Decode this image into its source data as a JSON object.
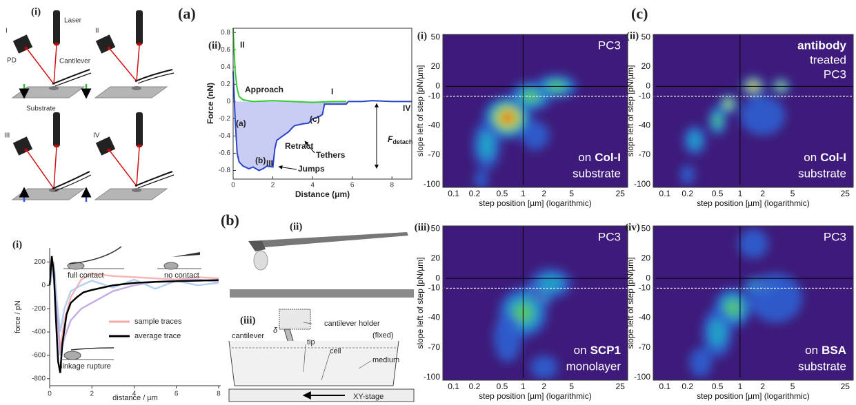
{
  "panel_a": {
    "label": "(a)",
    "schematic": {
      "label": "(i)",
      "steps": [
        "I",
        "II",
        "III",
        "IV"
      ],
      "laser": "Laser",
      "detector": "PD",
      "cantilever": "Cantilever",
      "substrate": "Substrate"
    },
    "force_curve": {
      "type": "line",
      "label": "(ii)",
      "xlabel": "Distance (μm)",
      "ylabel": "Force (nN)",
      "xlim": [
        0,
        9
      ],
      "xticks": [
        0,
        2,
        4,
        6,
        8
      ],
      "ylim": [
        -0.9,
        0.85
      ],
      "yticks": [
        0.8,
        0.6,
        0.4,
        0.2,
        0,
        -0.2,
        -0.4,
        -0.6,
        -0.8
      ],
      "series": [
        {
          "name": "Approach",
          "color": "#33cc33",
          "x": [
            0,
            0.05,
            0.1,
            0.2,
            0.3,
            0.5,
            1,
            2,
            3,
            4,
            5,
            5.7
          ],
          "values": [
            0.85,
            0.6,
            0.35,
            0.15,
            0.06,
            0.02,
            0,
            0.01,
            0,
            -0.01,
            0,
            0
          ]
        },
        {
          "name": "Retract",
          "color": "#2a44c8",
          "fill": "#c9cdf4",
          "x": [
            0,
            0.1,
            0.2,
            0.3,
            0.5,
            0.8,
            1.0,
            1.3,
            1.5,
            1.7,
            2.0,
            2.1,
            2.2,
            2.5,
            2.8,
            3.0,
            3.1,
            3.5,
            3.8,
            4.0,
            4.3,
            4.5,
            4.6,
            5.0,
            5.5,
            5.7,
            5.8,
            6.5,
            7,
            8,
            9
          ],
          "values": [
            0.35,
            -0.2,
            -0.6,
            -0.7,
            -0.75,
            -0.78,
            -0.76,
            -0.8,
            -0.78,
            -0.75,
            -0.76,
            -0.55,
            -0.45,
            -0.4,
            -0.35,
            -0.3,
            -0.28,
            -0.26,
            -0.25,
            -0.2,
            -0.18,
            -0.15,
            -0.03,
            -0.03,
            -0.03,
            -0.03,
            0,
            0,
            0.01,
            0,
            0
          ]
        }
      ],
      "stage_labels": [
        "I",
        "II",
        "III",
        "IV"
      ],
      "event_labels": [
        "(a)",
        "(b)",
        "(c)"
      ],
      "tethers": "Tethers",
      "jumps": "Jumps",
      "detach": {
        "symbol": "F",
        "subscript": "detach"
      }
    }
  },
  "panel_b": {
    "label": "(b)",
    "trace_plot": {
      "type": "line",
      "label": "(i)",
      "xlabel": "distance / µm",
      "ylabel": "force / pN",
      "xlim": [
        0,
        8.1
      ],
      "xticks": [
        0,
        2,
        4,
        6,
        8
      ],
      "ylim": [
        -860,
        320
      ],
      "yticks": [
        200,
        0,
        -200,
        -400,
        -600,
        -800
      ],
      "series": [
        {
          "name": "sample traces",
          "traces": [
            {
              "color": "#f4a9a9",
              "x": [
                0,
                0.2,
                0.35,
                0.5,
                0.7,
                1,
                1.5,
                2,
                3,
                4,
                5,
                6,
                7,
                8
              ],
              "values": [
                0,
                200,
                -200,
                -550,
                -300,
                -100,
                50,
                100,
                80,
                70,
                60,
                50,
                70,
                60
              ]
            },
            {
              "color": "#b8a0dc",
              "x": [
                0,
                0.2,
                0.35,
                0.5,
                0.7,
                1,
                1.5,
                2,
                3,
                4,
                5,
                6,
                7,
                8
              ],
              "values": [
                0,
                150,
                -250,
                -600,
                -450,
                -300,
                -200,
                -150,
                -50,
                0,
                30,
                40,
                50,
                30
              ]
            },
            {
              "color": "#a9c8ee",
              "x": [
                0,
                0.2,
                0.35,
                0.5,
                0.7,
                1,
                1.5,
                2,
                3,
                4,
                5,
                6,
                7,
                8
              ],
              "values": [
                0,
                180,
                -150,
                -400,
                -200,
                -50,
                0,
                40,
                -20,
                50,
                -30,
                40,
                0,
                20
              ]
            }
          ]
        },
        {
          "name": "average trace",
          "color": "#000000",
          "x": [
            0,
            0.1,
            0.2,
            0.3,
            0.4,
            0.5,
            0.6,
            0.8,
            1,
            1.3,
            1.6,
            2,
            2.5,
            3,
            3.5,
            4,
            5,
            6,
            7,
            8
          ],
          "values": [
            0,
            250,
            100,
            -300,
            -650,
            -750,
            -500,
            -250,
            -150,
            -100,
            -60,
            -40,
            -20,
            0,
            10,
            20,
            30,
            35,
            40,
            45
          ]
        }
      ],
      "insets": [
        "full contact",
        "no contact",
        "linkage rupture"
      ]
    },
    "photo": {
      "label": "(ii)"
    },
    "setup": {
      "label": "(iii)",
      "holder": "cantilever holder",
      "holder_note": "(fixed)",
      "cantilever": "cantilever",
      "deflection": "δ",
      "tip": "tip",
      "cell": "cell",
      "medium": "medium",
      "stage": "XY-stage"
    }
  },
  "panel_c": {
    "label": "(c)",
    "axes": {
      "xlabel": "step position [µm] (logarithmic)",
      "ylabel": "slope left of step [pN/µm]",
      "xscale": "log",
      "xlim": [
        0.07,
        32
      ],
      "xticks": [
        0.1,
        0.2,
        0.5,
        1,
        2,
        5,
        25
      ],
      "ylim": [
        -103,
        53
      ],
      "yticks": [
        50,
        20,
        0,
        -10,
        -40,
        -70,
        -100
      ],
      "hline": 0,
      "dashed_hline": -10,
      "vline": 1,
      "background": "#3e1b7a",
      "level_colors": [
        "#2f5fd0",
        "#1fa8c8",
        "#5cc85a",
        "#e8e030",
        "#e02020"
      ]
    },
    "maps": [
      {
        "label": "(i)",
        "top": [
          {
            "text": "PC3"
          }
        ],
        "condition": {
          "prefix": "on",
          "name": "Col-I",
          "suffix": "substrate"
        },
        "hotspots": [
          {
            "x": 0.6,
            "y": -32,
            "sx": 0.35,
            "sy": 22,
            "level": 5
          },
          {
            "x": 1.3,
            "y": -10,
            "sx": 0.3,
            "sy": 15,
            "level": 3
          },
          {
            "x": 3,
            "y": 0,
            "sx": 0.3,
            "sy": 12,
            "level": 3
          },
          {
            "x": 0.3,
            "y": -60,
            "sx": 0.2,
            "sy": 25,
            "level": 2
          },
          {
            "x": 0.25,
            "y": -95,
            "sx": 0.1,
            "sy": 10,
            "level": 1
          },
          {
            "x": 1.5,
            "y": -50,
            "sx": 0.2,
            "sy": 15,
            "level": 1
          }
        ]
      },
      {
        "label": "(ii)",
        "top": [
          {
            "text": "antibody",
            "bold": true
          },
          {
            "text": "treated"
          },
          {
            "text": "PC3"
          }
        ],
        "condition": {
          "prefix": "on",
          "name": "Col-I",
          "suffix": "substrate"
        },
        "hotspots": [
          {
            "x": 1.5,
            "y": 0,
            "sx": 0.15,
            "sy": 10,
            "level": 5
          },
          {
            "x": 3.5,
            "y": 0,
            "sx": 0.12,
            "sy": 8,
            "level": 4
          },
          {
            "x": 0.7,
            "y": -18,
            "sx": 0.12,
            "sy": 10,
            "level": 4
          },
          {
            "x": 0.5,
            "y": -35,
            "sx": 0.12,
            "sy": 15,
            "level": 3
          },
          {
            "x": 0.25,
            "y": -55,
            "sx": 0.15,
            "sy": 15,
            "level": 2
          },
          {
            "x": 2,
            "y": -30,
            "sx": 0.3,
            "sy": 20,
            "level": 1
          },
          {
            "x": 0.2,
            "y": -90,
            "sx": 0.1,
            "sy": 10,
            "level": 1
          }
        ]
      },
      {
        "label": "(iii)",
        "top": [
          {
            "text": "PC3"
          }
        ],
        "condition": {
          "prefix": "on",
          "name": "SCP1",
          "suffix": "monolayer"
        },
        "hotspots": [
          {
            "x": 1.5,
            "y": -18,
            "sx": 0.25,
            "sy": 13,
            "level": 5
          },
          {
            "x": 1,
            "y": -35,
            "sx": 0.35,
            "sy": 25,
            "level": 3
          },
          {
            "x": 2.5,
            "y": -5,
            "sx": 0.3,
            "sy": 15,
            "level": 2
          },
          {
            "x": 0.6,
            "y": -60,
            "sx": 0.2,
            "sy": 25,
            "level": 1
          },
          {
            "x": 2,
            "y": -90,
            "sx": 0.2,
            "sy": 12,
            "level": 1
          }
        ]
      },
      {
        "label": "(iv)",
        "top": [
          {
            "text": "PC3"
          }
        ],
        "condition": {
          "prefix": "on",
          "name": "BSA",
          "suffix": "substrate"
        },
        "hotspots": [
          {
            "x": 2,
            "y": -8,
            "sx": 0.25,
            "sy": 10,
            "level": 4
          },
          {
            "x": 0.8,
            "y": -30,
            "sx": 0.25,
            "sy": 20,
            "level": 3
          },
          {
            "x": 0.5,
            "y": -55,
            "sx": 0.2,
            "sy": 25,
            "level": 2
          },
          {
            "x": 3,
            "y": -20,
            "sx": 0.35,
            "sy": 25,
            "level": 1
          },
          {
            "x": 0.3,
            "y": -85,
            "sx": 0.15,
            "sy": 15,
            "level": 1
          },
          {
            "x": 1.5,
            "y": 35,
            "sx": 0.2,
            "sy": 15,
            "level": 1
          }
        ]
      }
    ]
  }
}
